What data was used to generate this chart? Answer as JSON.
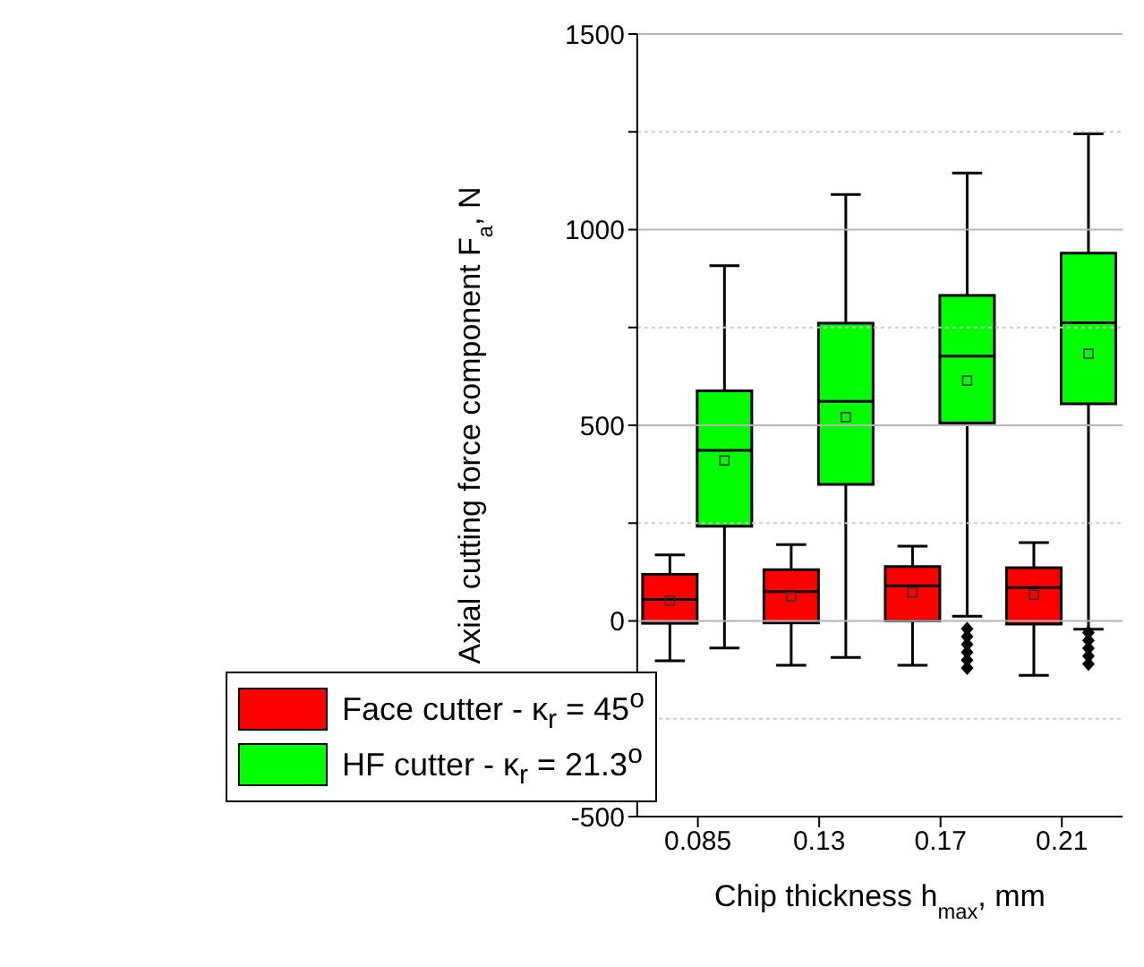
{
  "chart_data": {
    "type": "box",
    "xlabel": "Chip thickness h$_{max}$, mm",
    "ylabel": "Axial cutting force component F$_{a}$, N",
    "categories": [
      "0.085",
      "0.13",
      "0.17",
      "0.21"
    ],
    "ylim": [
      -500,
      1500
    ],
    "yticks": [
      -500,
      {
        "value": -250,
        "label": null
      },
      0,
      {
        "value": 250,
        "label": null
      },
      500,
      {
        "value": 750,
        "label": null
      },
      1000,
      {
        "value": 1250,
        "label": null
      },
      1500
    ],
    "grid": "y",
    "legend": "bottom left",
    "series": [
      {
        "name": "Face cutter - κ$_{r}$ = 45$^{o}$",
        "color": "#ff0000",
        "boxes": [
          {
            "low": -102,
            "q1": -6,
            "median": 55,
            "q3": 119,
            "high": 169,
            "mean": 52
          },
          {
            "low": -113,
            "q1": -5,
            "median": 75,
            "q3": 131,
            "high": 195,
            "mean": 62
          },
          {
            "low": -113,
            "q1": 0,
            "median": 90,
            "q3": 139,
            "high": 191,
            "mean": 73
          },
          {
            "low": -139,
            "q1": -8,
            "median": 85,
            "q3": 136,
            "high": 200,
            "mean": 67
          }
        ]
      },
      {
        "name": "HF cutter - κ$_{r}$ = 21.3$^{o}$",
        "color": "#00ff00",
        "boxes": [
          {
            "low": -69,
            "q1": 242,
            "median": 436,
            "q3": 588,
            "high": 908,
            "mean": 410
          },
          {
            "low": -93,
            "q1": 349,
            "median": 561,
            "q3": 761,
            "high": 1090,
            "mean": 521
          },
          {
            "low": 12,
            "q1": 506,
            "median": 677,
            "q3": 832,
            "high": 1145,
            "mean": 614,
            "outliers": [
              -20,
              -40,
              -60,
              -80,
              -100,
              -120
            ]
          },
          {
            "low": -21,
            "q1": 555,
            "median": 762,
            "q3": 940,
            "high": 1245,
            "mean": 683,
            "outliers": [
              -30,
              -50,
              -70,
              -90,
              -110
            ]
          }
        ]
      }
    ]
  }
}
